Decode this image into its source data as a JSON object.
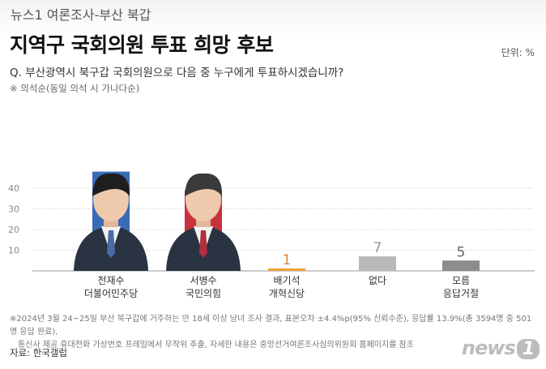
{
  "header": {
    "subtitle": "뉴스1 여론조사-부산 북갑",
    "title": "지역구 국회의원 투표 희망 후보",
    "unit": "단위: %"
  },
  "question": "Q. 부산광역시 북구갑 국회의원으로 다음 중 누구에게 투표하시겠습니까?",
  "sort_note": "※ 의석순(동일 의석 시 가나다순)",
  "chart_data": {
    "type": "bar",
    "title": "지역구 국회의원 투표 희망 후보",
    "xlabel": "",
    "ylabel": "",
    "unit": "%",
    "ylim": [
      0,
      50
    ],
    "yticks": [
      10,
      20,
      30,
      40
    ],
    "grid": true,
    "categories": [
      "전재수",
      "서병수",
      "배기석",
      "없다",
      "모름"
    ],
    "parties": [
      "더불어민주당",
      "국민의힘",
      "개혁신당",
      "",
      "응답거절"
    ],
    "values": [
      48,
      39,
      1,
      7,
      5
    ],
    "colors": [
      "#3a6bb8",
      "#c8323a",
      "#e9a13b",
      "#b8b8b8",
      "#8c8c8c"
    ],
    "label_colors": [
      "#ffffff",
      "#ffffff",
      "#d98a2b",
      "#999999",
      "#666666"
    ]
  },
  "footnote": {
    "line1": "※2024년 3월 24~25일 부산 북구갑에 거주하는 만 18세 이상 남녀 조사 결과, 표본오차 ±4.4%p(95% 신뢰수준), 응답률 13.9%(총 3594명 중 501명 응답 완료),",
    "line2": "통신사 제공 휴대전화 가상번호 프레임에서 무작위 추출, 자세한 내용은 중앙선거여론조사심의위원회 홈페이지를 참조"
  },
  "source": "자료: 한국갤럽",
  "logo": {
    "text": "news",
    "num": "1"
  }
}
